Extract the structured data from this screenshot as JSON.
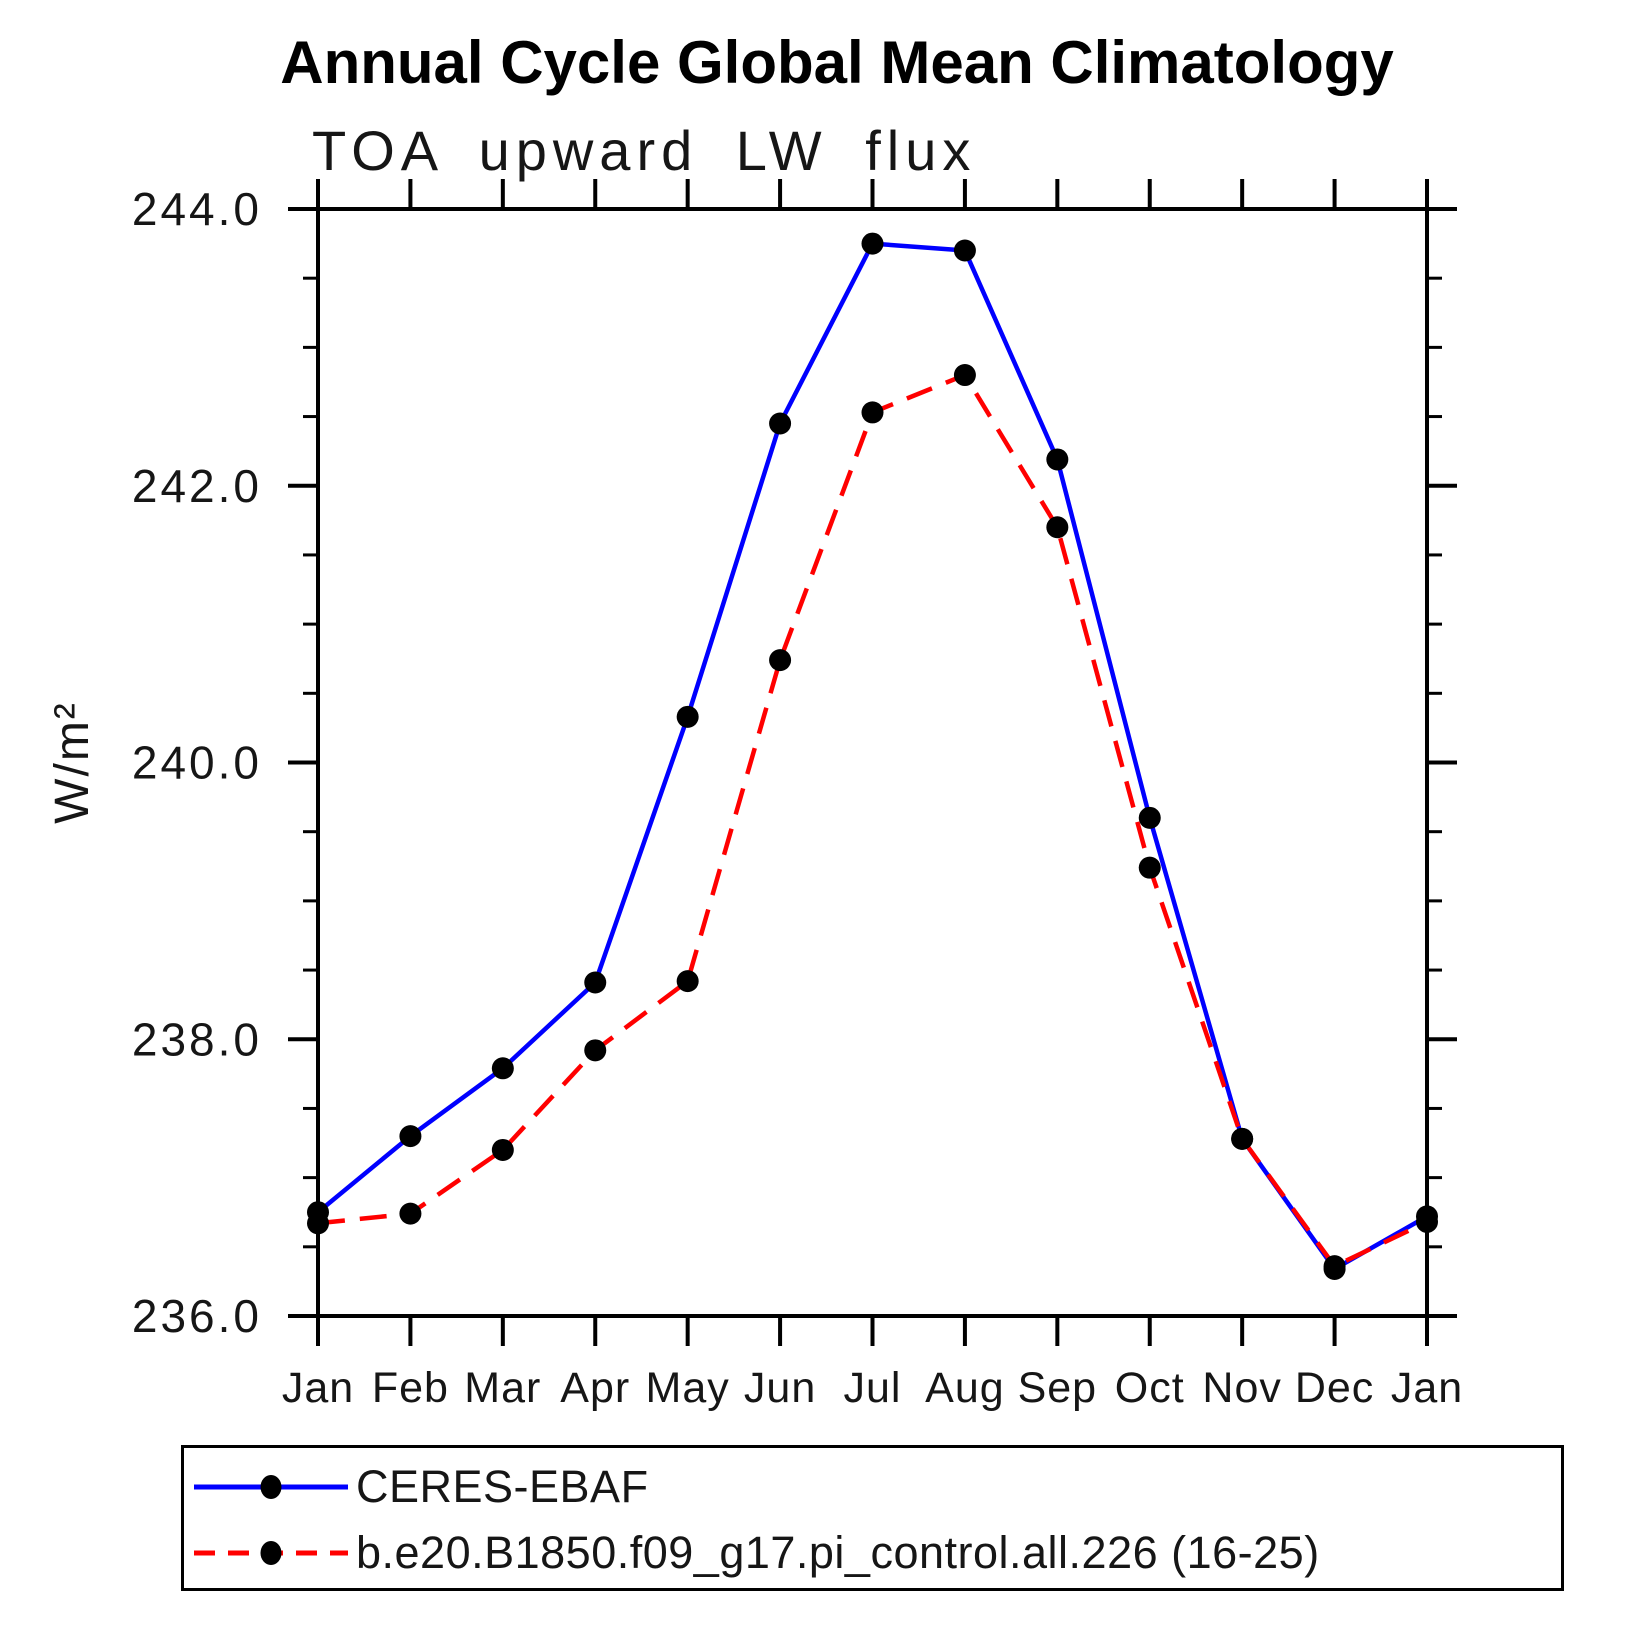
{
  "title": "Annual Cycle Global Mean Climatology",
  "subtitle": "TOA upward LW flux",
  "chart_data": {
    "type": "line",
    "title": "Annual Cycle Global Mean Climatology",
    "subtitle": "TOA upward LW flux",
    "xlabel": "",
    "ylabel": "W/m²",
    "ylim": [
      236.0,
      244.0
    ],
    "ytick_step": 2.0,
    "yminor_step": 0.5,
    "ytick_labels": [
      "236.0",
      "238.0",
      "240.0",
      "242.0",
      "244.0"
    ],
    "grid": "off",
    "legend_position": "bottom",
    "categories": [
      "Jan",
      "Feb",
      "Mar",
      "Apr",
      "May",
      "Jun",
      "Jul",
      "Aug",
      "Sep",
      "Oct",
      "Nov",
      "Dec",
      "Jan"
    ],
    "series": [
      {
        "name": "CERES-EBAF",
        "color": "#0000FF",
        "style": "solid",
        "marker": "filled-circle",
        "marker_color": "#000000",
        "values": [
          236.75,
          237.3,
          237.79,
          238.41,
          240.33,
          242.45,
          243.75,
          243.7,
          242.19,
          239.6,
          237.28,
          236.34,
          236.72
        ]
      },
      {
        "name": "b.e20.B1850.f09_g17.pi_control.all.226 (16-25)",
        "color": "#FF0000",
        "style": "dashed",
        "marker": "filled-circle",
        "marker_color": "#000000",
        "values": [
          236.67,
          236.74,
          237.2,
          237.92,
          238.42,
          240.74,
          242.53,
          242.8,
          241.7,
          239.24,
          237.28,
          236.36,
          236.68
        ]
      }
    ],
    "axis_color": "#000000"
  }
}
